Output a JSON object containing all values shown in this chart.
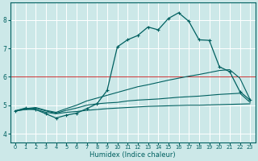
{
  "xlabel": "Humidex (Indice chaleur)",
  "xlim": [
    -0.5,
    23.5
  ],
  "ylim": [
    3.7,
    8.6
  ],
  "yticks": [
    4,
    5,
    6,
    7,
    8
  ],
  "xticks": [
    0,
    1,
    2,
    3,
    4,
    5,
    6,
    7,
    8,
    9,
    10,
    11,
    12,
    13,
    14,
    15,
    16,
    17,
    18,
    19,
    20,
    21,
    22,
    23
  ],
  "bg_color": "#cce8e8",
  "grid_color": "#ffffff",
  "line_color": "#006060",
  "red_line_y": 6.0,
  "line_bottom_y": [
    4.8,
    4.85,
    4.85,
    4.75,
    4.7,
    4.75,
    4.78,
    4.82,
    4.85,
    4.88,
    4.9,
    4.92,
    4.94,
    4.96,
    4.97,
    4.98,
    4.99,
    5.0,
    5.0,
    5.01,
    5.02,
    5.03,
    5.04,
    5.05
  ],
  "line_mid_y": [
    4.8,
    4.85,
    4.9,
    4.8,
    4.72,
    4.82,
    4.9,
    5.0,
    5.05,
    5.08,
    5.1,
    5.15,
    5.18,
    5.2,
    5.22,
    5.25,
    5.28,
    5.3,
    5.32,
    5.35,
    5.38,
    5.4,
    5.42,
    5.1
  ],
  "line_upper_y": [
    4.8,
    4.88,
    4.92,
    4.82,
    4.75,
    4.88,
    5.0,
    5.15,
    5.25,
    5.35,
    5.45,
    5.55,
    5.65,
    5.72,
    5.8,
    5.88,
    5.95,
    6.02,
    6.08,
    6.15,
    6.22,
    6.25,
    5.95,
    5.2
  ],
  "line_main_y": [
    4.8,
    4.9,
    4.85,
    4.7,
    4.55,
    4.65,
    4.72,
    4.88,
    5.05,
    5.52,
    7.05,
    7.3,
    7.45,
    7.75,
    7.65,
    8.05,
    8.25,
    7.95,
    7.3,
    7.28,
    6.35,
    6.18,
    5.48,
    5.18
  ],
  "marker": "+"
}
